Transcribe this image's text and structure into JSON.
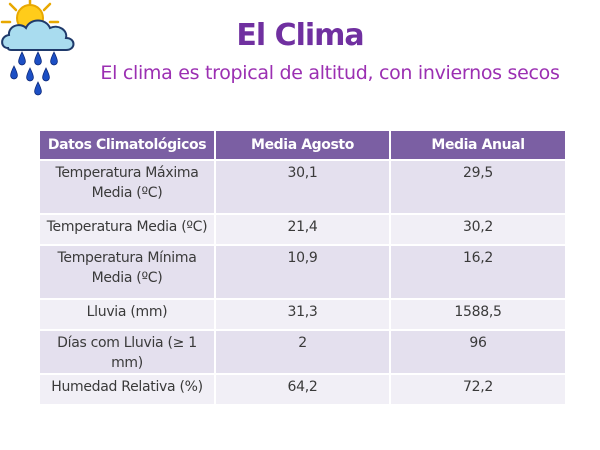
{
  "slide": {
    "title": "El Clima",
    "subtitle": "El clima es tropical de altitud, con inviernos secos"
  },
  "table": {
    "headers": [
      "Datos Climatológicos",
      "Media Agosto",
      "Media Anual"
    ],
    "rows": [
      {
        "label": "Temperatura Máxima Media (ºC)",
        "agosto": "30,1",
        "anual": "29,5"
      },
      {
        "label": "Temperatura Media (ºC)",
        "agosto": "21,4",
        "anual": "30,2"
      },
      {
        "label": "Temperatura Mínima Media (ºC)",
        "agosto": "10,9",
        "anual": "16,2"
      },
      {
        "label": "Lluvia (mm)",
        "agosto": "31,3",
        "anual": "1588,5"
      },
      {
        "label": "Días com Lluvia (≥ 1 mm)",
        "agosto": "2",
        "anual": "96"
      },
      {
        "label": "Humedad Relativa (%)",
        "agosto": "64,2",
        "anual": "72,2"
      }
    ]
  },
  "icon": {
    "name": "sun-cloud-rain-icon"
  },
  "colors": {
    "title": "#7030a0",
    "subtitle": "#9b2fb2",
    "header_bg": "#7b5fa3",
    "row_odd": "#e4e0ee",
    "row_even": "#f1eff6"
  }
}
